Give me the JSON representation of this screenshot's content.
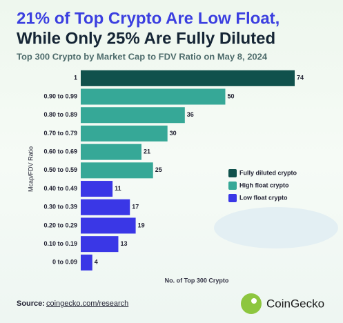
{
  "chart_data": {
    "type": "bar",
    "orientation": "horizontal",
    "title_line1": "21% of Top Crypto Are Low Float,",
    "title_line2": "While Only 25% Are Fully Diluted",
    "subtitle": "Top 300 Crypto by Market Cap to FDV Ratio on May 8, 2024",
    "y_label": "Mcap/FDV Ratio",
    "x_label": "No. of Top 300 Crypto",
    "categories": [
      "1",
      "0.90 to 0.99",
      "0.80 to 0.89",
      "0.70 to 0.79",
      "0.60 to 0.69",
      "0.50 to 0.59",
      "0.40 to 0.49",
      "0.30 to 0.39",
      "0.20 to 0.29",
      "0.10 to 0.19",
      "0 to 0.09"
    ],
    "series": [
      {
        "name": "Fully diluted crypto",
        "color": "#10514c",
        "values": [
          74,
          null,
          null,
          null,
          null,
          null,
          null,
          null,
          null,
          null,
          null
        ]
      },
      {
        "name": "High float crypto",
        "color": "#36a897",
        "values": [
          null,
          50,
          36,
          30,
          21,
          25,
          null,
          null,
          null,
          null,
          null
        ]
      },
      {
        "name": "Low float crypto",
        "color": "#3a37e6",
        "values": [
          null,
          null,
          null,
          null,
          null,
          null,
          11,
          17,
          19,
          13,
          4
        ]
      }
    ],
    "xlim": [
      0,
      74
    ],
    "source_label": "Source:",
    "source_url": "coingecko.com/research",
    "brand": "CoinGecko"
  }
}
